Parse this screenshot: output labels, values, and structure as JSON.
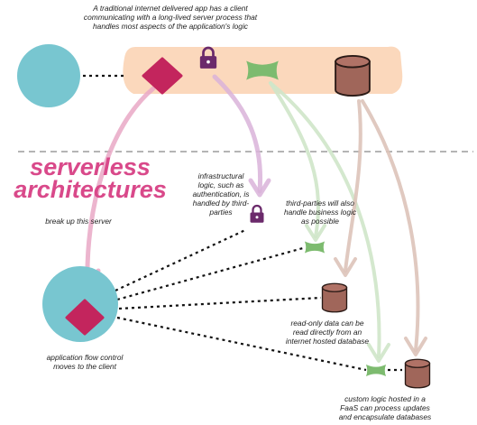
{
  "notes": {
    "traditional_line1": "A traditional internet delivered app has a client",
    "traditional_line2": "communicating with a long-lived server process that",
    "traditional_line3": "handles most aspects of the application's logic",
    "title_line1": "serverless",
    "title_line2": "architectures",
    "break_up": "break up this server",
    "auth_line1": "infrastructural",
    "auth_line2": "logic, such as",
    "auth_line3": "authentication, is",
    "auth_line4": "handled by third-",
    "auth_line5": "parties",
    "third_line1": "third-parties will also",
    "third_line2": "handle business logic",
    "third_line3": "as possible",
    "readonly_line1": "read-only data can be",
    "readonly_line2": "read directly from an",
    "readonly_line3": "internet hosted database",
    "client_line1": "application flow control",
    "client_line2": "moves to the client",
    "faas_line1": "custom logic hosted in a",
    "faas_line2": "FaaS can process updates",
    "faas_line3": "and encapsulate databases"
  },
  "colors": {
    "client": "#78c6d0",
    "server_band": "#fbd8bc",
    "flow_control": "#c3255d",
    "lock": "#6b2a6b",
    "business_logic": "#7dbb6f",
    "database": "#a0665a",
    "title": "#d9498a",
    "divider": "#888888",
    "arrow_pink": "#e9a8c6",
    "arrow_purple": "#d9b3d9",
    "arrow_green": "#cfe6c9",
    "arrow_brown": "#ddc3b9"
  },
  "icons": {
    "client": "client-circle-icon",
    "flow_control": "flow-control-diamond-icon",
    "lock": "lock-icon",
    "business_logic": "business-logic-bowtie-icon",
    "database": "database-cylinder-icon"
  }
}
